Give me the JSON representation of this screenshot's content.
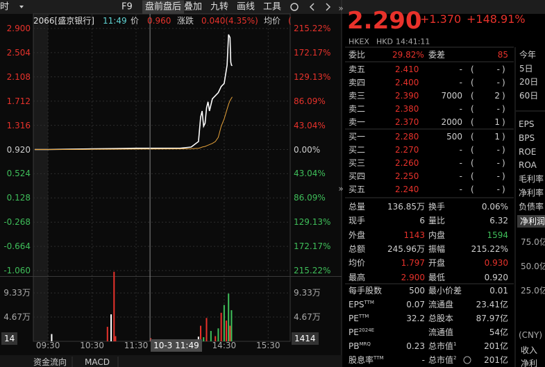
{
  "toolbar": {
    "items": [
      "时",
      "F9",
      "盘前盘后",
      "叠加",
      "九转",
      "画线",
      "工具"
    ]
  },
  "chart_header": {
    "symbol": "2066[盛京银行]",
    "time": "11:49",
    "price_label": "价",
    "price": "0.960",
    "change_label": "涨跌",
    "change": "0.040(4.35%)",
    "avg_label": "均价",
    "avg": "("
  },
  "chart_data": [
    {
      "type": "line",
      "xlim": [
        -20,
        330
      ],
      "xticks": [
        {
          "value": 0,
          "label": "09:30"
        },
        {
          "value": 60,
          "label": "10:30"
        },
        {
          "value": 120,
          "label": "11:30"
        },
        {
          "value": 240,
          "label": "14:30"
        },
        {
          "value": 300,
          "label": "15:30"
        }
      ],
      "ylim": [
        -1.06,
        2.9
      ],
      "yticks": [
        {
          "value": 2.9,
          "label": "2.900"
        },
        {
          "value": 2.504,
          "label": "2.504"
        },
        {
          "value": 2.108,
          "label": "2.108"
        },
        {
          "value": 1.712,
          "label": "1.712"
        },
        {
          "value": 1.316,
          "label": "1.316"
        },
        {
          "value": 0.92,
          "label": "0.920"
        },
        {
          "value": 0.524,
          "label": "0.524"
        },
        {
          "value": 0.128,
          "label": "0.128"
        },
        {
          "value": -0.268,
          "label": "-0.268"
        },
        {
          "value": -0.664,
          "label": "-0.664"
        },
        {
          "value": -1.06,
          "label": "-1.060"
        }
      ],
      "y2lim": [
        -215.22,
        215.22
      ],
      "y2ticks": [
        {
          "value": 215.22,
          "label": "215.22%"
        },
        {
          "value": 172.17,
          "label": "172.17%"
        },
        {
          "value": 129.13,
          "label": "129.13%"
        },
        {
          "value": 86.09,
          "label": "86.09%"
        },
        {
          "value": 43.04,
          "label": "43.04%"
        },
        {
          "value": 0,
          "label": "0.00%"
        },
        {
          "value": -43.04,
          "label": "43.04%"
        },
        {
          "value": -86.09,
          "label": "86.09%"
        },
        {
          "value": -129.13,
          "label": "129.13%"
        },
        {
          "value": -172.17,
          "label": "172.17%"
        },
        {
          "value": -215.22,
          "label": "215.22%"
        }
      ],
      "grid": true,
      "cursor": {
        "x": 139,
        "label": "10-3 11:49"
      },
      "x": [
        -18,
        0,
        30,
        60,
        90,
        120,
        150,
        180,
        195,
        205,
        208,
        210,
        212,
        214,
        216,
        218,
        220,
        224,
        228,
        232,
        236,
        240,
        244,
        246,
        248,
        249,
        250,
        251
      ],
      "series": [
        {
          "color": "#ffffff",
          "values": [
            0.92,
            0.92,
            0.925,
            0.93,
            0.935,
            0.94,
            0.94,
            0.94,
            0.96,
            1.05,
            1.45,
            1.55,
            1.3,
            1.35,
            1.6,
            1.7,
            1.55,
            1.75,
            1.8,
            1.85,
            1.95,
            2.0,
            2.3,
            2.8,
            2.75,
            2.35,
            2.3,
            2.29
          ]
        },
        {
          "color": "#e8a33a",
          "values": [
            0.92,
            0.92,
            0.92,
            0.922,
            0.925,
            0.927,
            0.928,
            0.93,
            0.932,
            0.94,
            0.95,
            0.96,
            0.965,
            0.97,
            0.98,
            0.99,
            1.0,
            1.02,
            1.05,
            1.12,
            1.3,
            1.42,
            1.58,
            1.66,
            1.72,
            1.74,
            1.76,
            1.78
          ]
        }
      ]
    },
    {
      "type": "bar",
      "x": [
        5,
        81,
        86,
        90,
        92,
        140,
        205,
        208,
        212,
        216,
        222,
        228,
        232,
        236,
        240,
        243,
        246,
        248,
        250
      ],
      "values": [
        14000,
        28000,
        52000,
        134000,
        10000,
        6000,
        9000,
        30000,
        8000,
        45000,
        20000,
        10000,
        25000,
        55000,
        70000,
        40000,
        92000,
        30000,
        60000
      ],
      "colors": [
        "#ffffff",
        "#e8322b",
        "#ffffff",
        "#e8322b",
        "#e8322b",
        "#e8322b",
        "#ffffff",
        "#e8322b",
        "#3fbf5a",
        "#e8322b",
        "#3fbf5a",
        "#e8322b",
        "#3fbf5a",
        "#e8322b",
        "#3fbf5a",
        "#e8322b",
        "#3fbf5a",
        "#e8322b",
        "#3fbf5a"
      ],
      "ylim": [
        0,
        135000
      ],
      "yticks": [
        {
          "value": 93300,
          "label": "9.33万"
        },
        {
          "value": 46700,
          "label": "4.67万"
        }
      ],
      "readout_left": "14",
      "readout": "1414"
    }
  ],
  "quote": {
    "price": "2.290",
    "change": "+1.370",
    "change_pct": "+148.91%",
    "exchange": "HKEX",
    "currency": "HKD",
    "time": "14:41:11"
  },
  "order_book": {
    "ratio_label": "委比",
    "ratio": "29.82%",
    "diff_label": "委差",
    "diff": "85",
    "asks": [
      [
        "卖五",
        "2.410",
        "-",
        "(",
        "-",
        ")"
      ],
      [
        "卖四",
        "2.400",
        "-",
        "(",
        "-",
        ")"
      ],
      [
        "卖三",
        "2.390",
        "7000",
        "(",
        "2",
        ")"
      ],
      [
        "卖二",
        "2.380",
        "-",
        "(",
        "-",
        ")"
      ],
      [
        "卖一",
        "2.370",
        "2000",
        "(",
        "1",
        ")"
      ]
    ],
    "bids": [
      [
        "买一",
        "2.280",
        "500",
        "(",
        "1",
        ")"
      ],
      [
        "买二",
        "2.270",
        "-",
        "(",
        "-",
        ")"
      ],
      [
        "买三",
        "2.260",
        "-",
        "(",
        "-",
        ")"
      ],
      [
        "买四",
        "2.250",
        "-",
        "(",
        "-",
        ")"
      ],
      [
        "买五",
        "2.240",
        "-",
        "(",
        "-",
        ")"
      ]
    ]
  },
  "stats": [
    {
      "label": "总量",
      "value": "136.85万",
      "label2": "换手",
      "value2": "0.06%"
    },
    {
      "label": "现手",
      "value": "6",
      "label2": "量比",
      "value2": "6.32"
    },
    {
      "label": "外盘",
      "value": "1143",
      "color": "#e8322b",
      "label2": "内盘",
      "value2": "1594",
      "color2": "#3fbf5a"
    },
    {
      "label": "总额",
      "value": "245.96万",
      "label2": "振幅",
      "value2": "215.22%"
    },
    {
      "label": "均价",
      "value": "1.797",
      "color": "#e8322b",
      "label2": "开盘",
      "value2": "0.930",
      "color2": "#e8322b"
    },
    {
      "label": "最高",
      "value": "2.900",
      "color": "#e8322b",
      "label2": "最低",
      "value2": "0.920"
    }
  ],
  "fundamentals": [
    {
      "label": "每手股数",
      "value": "500",
      "label2": "最小价差",
      "value2": "0.01"
    },
    {
      "label": "EPS",
      "sup": "TTM",
      "value": "0.07",
      "label2": "流通盘",
      "value2": "23.41亿"
    },
    {
      "label": "PE",
      "sup": "TTM",
      "value": "32.2",
      "label2": "总股本",
      "value2": "87.97亿"
    },
    {
      "label": "PE",
      "sup": "2024E",
      "label2": "流通值",
      "value2": "54亿"
    },
    {
      "label": "PB",
      "sup": "MRQ",
      "value": "0.23",
      "label2": "总市值",
      "sup2": "1",
      "value2": "201亿"
    },
    {
      "label": "股息率",
      "sup": "TTM",
      "value": "-",
      "label2": "总市值",
      "sup2": "2",
      "value2": "201亿"
    }
  ],
  "side": {
    "periods": [
      "今年",
      "5日",
      "20日",
      "60日"
    ],
    "metrics": [
      "EPS",
      "BPS",
      "ROE",
      "ROA",
      "毛利率",
      "净利率",
      "负债率"
    ],
    "active_tab": "净利润",
    "axis": [
      "75.0亿",
      "50.0亿",
      "25.0亿"
    ],
    "currency": "(CNY)",
    "legend": [
      "收入",
      "净利"
    ]
  },
  "bottom_tabs": [
    "资金流向",
    "MACD"
  ]
}
